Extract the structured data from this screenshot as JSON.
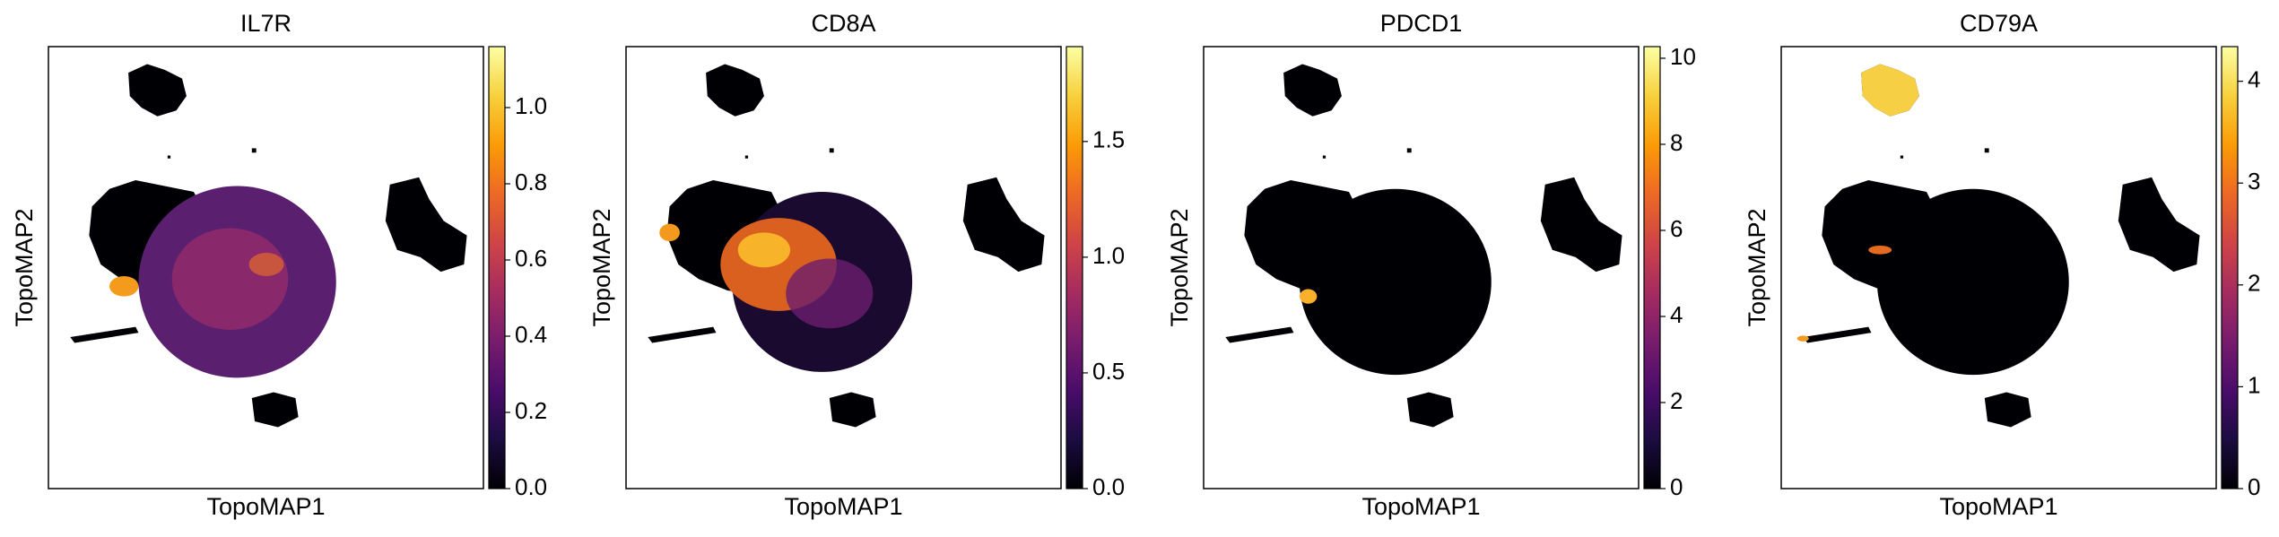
{
  "chart_data": [
    {
      "type": "scatter",
      "title": "IL7R",
      "xlabel": "TopoMAP1",
      "ylabel": "TopoMAP2",
      "colormap": "inferno",
      "clim": [
        0,
        1.16
      ],
      "cticks": [
        {
          "value": 0,
          "label": "0.0"
        },
        0.2,
        0.4,
        0.6,
        0.8,
        {
          "value": 1,
          "label": "1.0"
        }
      ]
    },
    {
      "type": "scatter",
      "title": "CD8A",
      "xlabel": "TopoMAP1",
      "ylabel": "TopoMAP2",
      "colormap": "inferno",
      "clim": [
        0,
        1.91
      ],
      "cticks": [
        {
          "value": 0,
          "label": "0.0"
        },
        0.5,
        {
          "value": 1,
          "label": "1.0"
        },
        1.5
      ]
    },
    {
      "type": "scatter",
      "title": "PDCD1",
      "xlabel": "TopoMAP1",
      "ylabel": "TopoMAP2",
      "colormap": "inferno",
      "clim": [
        0,
        10.27
      ],
      "cticks": [
        0,
        2,
        4,
        6,
        8,
        10
      ]
    },
    {
      "type": "scatter",
      "title": "CD79A",
      "xlabel": "TopoMAP1",
      "ylabel": "TopoMAP2",
      "colormap": "inferno",
      "clim": [
        0,
        4.34
      ],
      "cticks": [
        0,
        1,
        2,
        3,
        4
      ]
    }
  ]
}
